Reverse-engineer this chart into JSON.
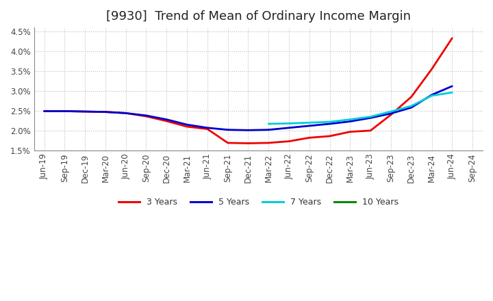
{
  "title": "[9930]  Trend of Mean of Ordinary Income Margin",
  "x_labels": [
    "Jun-19",
    "Sep-19",
    "Dec-19",
    "Mar-20",
    "Jun-20",
    "Sep-20",
    "Dec-20",
    "Mar-21",
    "Jun-21",
    "Sep-21",
    "Dec-21",
    "Mar-22",
    "Jun-22",
    "Sep-22",
    "Dec-22",
    "Mar-23",
    "Jun-23",
    "Sep-23",
    "Dec-23",
    "Mar-24",
    "Jun-24",
    "Sep-24"
  ],
  "ylim": [
    0.015,
    0.046
  ],
  "yticks": [
    0.015,
    0.02,
    0.025,
    0.03,
    0.035,
    0.04,
    0.045
  ],
  "series": {
    "3 Years": {
      "color": "#EE0000",
      "data_x": [
        0,
        1,
        2,
        3,
        4,
        5,
        6,
        7,
        8,
        9,
        10,
        11,
        12,
        13,
        14,
        15,
        16,
        17,
        18,
        19,
        20
      ],
      "data_y": [
        0.0249,
        0.0249,
        0.0248,
        0.0247,
        0.0244,
        0.0236,
        0.0224,
        0.021,
        0.0204,
        0.0169,
        0.0168,
        0.0169,
        0.0173,
        0.0182,
        0.0186,
        0.0197,
        0.02,
        0.024,
        0.0285,
        0.0355,
        0.0433
      ]
    },
    "5 Years": {
      "color": "#0000CC",
      "data_x": [
        0,
        1,
        2,
        3,
        4,
        5,
        6,
        7,
        8,
        9,
        10,
        11,
        12,
        13,
        14,
        15,
        16,
        17,
        18,
        19,
        20
      ],
      "data_y": [
        0.0249,
        0.0249,
        0.0248,
        0.0247,
        0.0244,
        0.0238,
        0.0228,
        0.0215,
        0.0207,
        0.0202,
        0.0201,
        0.0202,
        0.0207,
        0.0212,
        0.0217,
        0.0223,
        0.0232,
        0.0243,
        0.0258,
        0.029,
        0.0312
      ]
    },
    "7 Years": {
      "color": "#00CCDD",
      "data_x": [
        11,
        12,
        13,
        14,
        15,
        16,
        17,
        18,
        19,
        20
      ],
      "data_y": [
        0.0217,
        0.0218,
        0.022,
        0.0222,
        0.0228,
        0.0235,
        0.0248,
        0.0262,
        0.0288,
        0.0296
      ]
    },
    "10 Years": {
      "color": "#008800",
      "data_x": [],
      "data_y": []
    }
  },
  "legend_labels": [
    "3 Years",
    "5 Years",
    "7 Years",
    "10 Years"
  ],
  "legend_colors": [
    "#EE0000",
    "#0000CC",
    "#00CCDD",
    "#008800"
  ],
  "background_color": "#FFFFFF",
  "grid_color": "#BBBBBB",
  "title_fontsize": 13,
  "tick_fontsize": 8.5,
  "legend_fontsize": 9
}
